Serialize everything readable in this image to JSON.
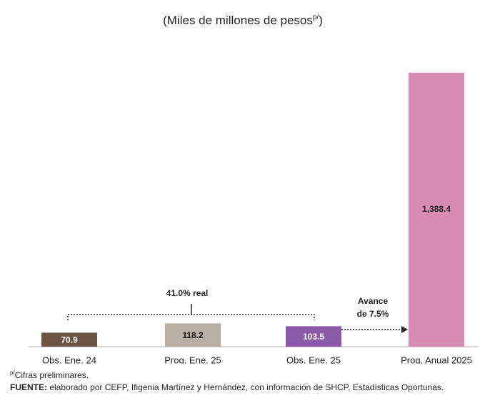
{
  "chart_data": {
    "type": "bar",
    "subtitle": {
      "text": "(Miles de millones de pesos",
      "superscript": "p/",
      "close": ")"
    },
    "categories": [
      "Obs. Ene. 24",
      "Prog. Ene. 25",
      "Obs. Ene. 25",
      "Prog. Anual 2025"
    ],
    "values": [
      70.9,
      118.2,
      103.5,
      1388.4
    ],
    "value_labels": [
      "70.9",
      "118.2",
      "103.5",
      "1,388.4"
    ],
    "colors": [
      "#6b5444",
      "#b9aea3",
      "#8a5aa8",
      "#d98bb4"
    ],
    "annotations": {
      "bracket": "41.0% real",
      "arrow": [
        "Avance",
        "de 7.5%"
      ]
    },
    "footnote": {
      "superscript": "p/",
      "text": "Cifras preliminares."
    },
    "source": {
      "label": "FUENTE:",
      "text": " elaborado por CEFP, Ifigenia Martínez y Hernández, con información de SHCP, Estadísticas Oportunas."
    }
  }
}
